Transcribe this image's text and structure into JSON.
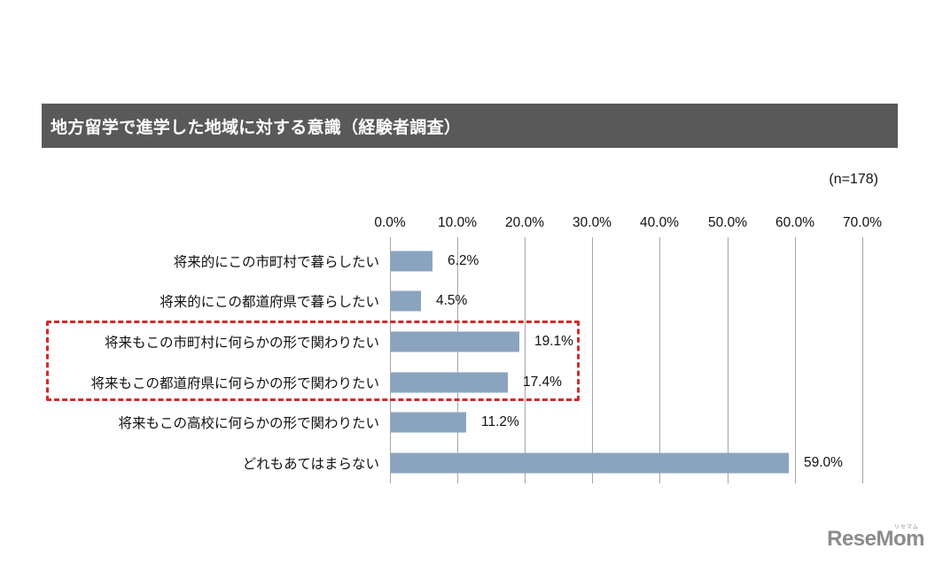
{
  "header": {
    "title": "地方留学で進学した地域に対する意識（経験者調査）",
    "sample_size": "(n=178)"
  },
  "colors": {
    "title_bar": "#595959",
    "bar": "#8aa4bf",
    "highlight_border": "#d22b2b",
    "gridline": "#a6a6a6"
  },
  "chart_data": {
    "type": "bar",
    "orientation": "horizontal",
    "title": "地方留学で進学した地域に対する意識（経験者調査）",
    "subtitle": "(n=178)",
    "xlabel": "",
    "ylabel": "",
    "xlim": [
      0,
      70
    ],
    "grid": true,
    "x_ticks": [
      "0.0%",
      "10.0%",
      "20.0%",
      "30.0%",
      "40.0%",
      "50.0%",
      "60.0%",
      "70.0%"
    ],
    "categories": [
      "将来的にこの市町村で暮らしたい",
      "将来的にこの都道府県で暮らしたい",
      "将来もこの市町村に何らかの形で関わりたい",
      "将来もこの都道府県に何らかの形で関わりたい",
      "将来もこの高校に何らかの形で関わりたい",
      "どれもあてはまらない"
    ],
    "values": [
      6.2,
      4.5,
      19.1,
      17.4,
      11.2,
      59.0
    ],
    "value_labels": [
      "6.2%",
      "4.5%",
      "19.1%",
      "17.4%",
      "11.2%",
      "59.0%"
    ],
    "annotations": [
      {
        "type": "dashed-box",
        "color": "#d22b2b",
        "encloses": [
          "将来もこの市町村に何らかの形で関わりたい",
          "将来もこの都道府県に何らかの形で関わりたい"
        ]
      }
    ]
  },
  "watermark": {
    "logo_text": "ReseMom",
    "logo_kana": "リセマム"
  }
}
